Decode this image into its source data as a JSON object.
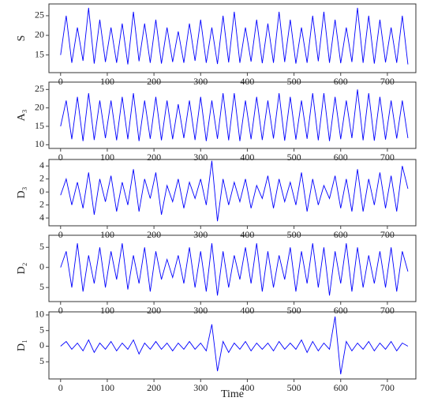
{
  "chart_data": [
    {
      "type": "line",
      "ylabel": "S",
      "color": "#0000ff",
      "x": [
        0,
        12,
        24,
        36,
        48,
        60,
        72,
        84,
        96,
        108,
        120,
        132,
        144,
        156,
        168,
        180,
        192,
        204,
        216,
        228,
        240,
        252,
        264,
        276,
        288,
        300,
        312,
        324,
        336,
        348,
        360,
        372,
        384,
        396,
        408,
        420,
        432,
        444,
        456,
        468,
        480,
        492,
        504,
        516,
        528,
        540,
        552,
        564,
        576,
        588,
        600,
        612,
        624,
        636,
        648,
        660,
        672,
        684,
        696,
        708,
        720,
        732,
        744
      ],
      "values": [
        15,
        25,
        13,
        22,
        13.5,
        27,
        12.8,
        24,
        13.2,
        22,
        13,
        23,
        12.6,
        26,
        13.4,
        23,
        13,
        24,
        12.8,
        22,
        13.2,
        21,
        13,
        23,
        13.5,
        24,
        13,
        22,
        12.7,
        25,
        13.1,
        26,
        13,
        22,
        13.3,
        24,
        12.9,
        23,
        13,
        26,
        13.2,
        24,
        12.8,
        22,
        13,
        25,
        13.4,
        26,
        13,
        24,
        12.9,
        22,
        13.2,
        27,
        13,
        25,
        12.8,
        24,
        13.1,
        22,
        13,
        25,
        12.6
      ],
      "xlim": [
        -25,
        761
      ],
      "xticks": [
        0,
        100,
        200,
        300,
        400,
        500,
        600,
        700
      ],
      "ylim": [
        10.5,
        28
      ],
      "yticks": [
        15,
        20,
        25
      ]
    },
    {
      "type": "line",
      "ylabel": "A₃",
      "color": "#0000ff",
      "x": [
        0,
        12,
        24,
        36,
        48,
        60,
        72,
        84,
        96,
        108,
        120,
        132,
        144,
        156,
        168,
        180,
        192,
        204,
        216,
        228,
        240,
        252,
        264,
        276,
        288,
        300,
        312,
        324,
        336,
        348,
        360,
        372,
        384,
        396,
        408,
        420,
        432,
        444,
        456,
        468,
        480,
        492,
        504,
        516,
        528,
        540,
        552,
        564,
        576,
        588,
        600,
        612,
        624,
        636,
        648,
        660,
        672,
        684,
        696,
        708,
        720,
        732,
        744
      ],
      "values": [
        15,
        22,
        11.5,
        23,
        11,
        24,
        11.3,
        22,
        11.8,
        22,
        11.2,
        23,
        11.5,
        24,
        11,
        22,
        11.6,
        23,
        11.2,
        22,
        11.5,
        21,
        11.8,
        22,
        11.3,
        23,
        11,
        22,
        11.6,
        24,
        11.2,
        24,
        11,
        22,
        11.5,
        23,
        11.3,
        22,
        11.7,
        24,
        11.1,
        23,
        11.4,
        22,
        11.6,
        24,
        11.2,
        24,
        11,
        23,
        11.5,
        22,
        11.8,
        25,
        11.2,
        24,
        11.1,
        23,
        11.4,
        22,
        11.7,
        22,
        11.8
      ],
      "xlim": [
        -25,
        761
      ],
      "xticks": [
        0,
        100,
        200,
        300,
        400,
        500,
        600,
        700
      ],
      "ylim": [
        9,
        27
      ],
      "yticks": [
        10,
        15,
        20,
        25
      ]
    },
    {
      "type": "line",
      "ylabel": "D₃",
      "color": "#0000ff",
      "x": [
        0,
        12,
        24,
        36,
        48,
        60,
        72,
        84,
        96,
        108,
        120,
        132,
        144,
        156,
        168,
        180,
        192,
        204,
        216,
        228,
        240,
        252,
        264,
        276,
        288,
        300,
        312,
        324,
        336,
        348,
        360,
        372,
        384,
        396,
        408,
        420,
        432,
        444,
        456,
        468,
        480,
        492,
        504,
        516,
        528,
        540,
        552,
        564,
        576,
        588,
        600,
        612,
        624,
        636,
        648,
        660,
        672,
        684,
        696,
        708,
        720,
        732,
        744
      ],
      "values": [
        -0.5,
        2,
        -2,
        1.5,
        -2.5,
        3,
        -3.5,
        2,
        -1.5,
        2.5,
        -3,
        1.5,
        -2,
        3.5,
        -3,
        2,
        -1,
        3,
        -3.5,
        1,
        -1.5,
        2,
        -2.5,
        1.5,
        -1,
        2,
        -2,
        4.8,
        -4.5,
        2,
        -2,
        1.5,
        -1.5,
        2,
        -2.5,
        1,
        -1,
        2.5,
        -2.5,
        2,
        -1.5,
        1.5,
        -2,
        3,
        -3,
        2,
        -2,
        1,
        -1,
        2.5,
        -2.5,
        2,
        -3,
        3.5,
        -3,
        2,
        -2,
        3,
        -2.5,
        2.5,
        -3,
        4,
        0.5
      ],
      "xlim": [
        -25,
        761
      ],
      "xticks": [
        0,
        100,
        200,
        300,
        400,
        500,
        600,
        700
      ],
      "ylim": [
        -5.2,
        5
      ],
      "yticks": [
        4,
        2,
        0,
        {
          "value": -2,
          "label": "2"
        },
        {
          "value": -4,
          "label": "4"
        }
      ]
    },
    {
      "type": "line",
      "ylabel": "D₂",
      "color": "#0000ff",
      "x": [
        0,
        12,
        24,
        36,
        48,
        60,
        72,
        84,
        96,
        108,
        120,
        132,
        144,
        156,
        168,
        180,
        192,
        204,
        216,
        228,
        240,
        252,
        264,
        276,
        288,
        300,
        312,
        324,
        336,
        348,
        360,
        372,
        384,
        396,
        408,
        420,
        432,
        444,
        456,
        468,
        480,
        492,
        504,
        516,
        528,
        540,
        552,
        564,
        576,
        588,
        600,
        612,
        624,
        636,
        648,
        660,
        672,
        684,
        696,
        708,
        720,
        732,
        744
      ],
      "values": [
        0,
        4,
        -5,
        6,
        -6,
        3,
        -4,
        5,
        -5,
        4,
        -3,
        6,
        -5.5,
        3,
        -4,
        5,
        -6,
        4,
        -3,
        2,
        -2.5,
        3,
        -4,
        5,
        -5,
        4,
        -6,
        6,
        -7,
        4,
        -5,
        3,
        -3,
        5,
        -4,
        6,
        -6,
        4,
        -5,
        3,
        -3,
        5,
        -6,
        4,
        -4,
        6,
        -5,
        5,
        -7,
        4,
        -4,
        6,
        -6,
        5,
        -5,
        3,
        -4,
        4,
        -5,
        5,
        -6,
        4,
        -1
      ],
      "xlim": [
        -25,
        761
      ],
      "xticks": [
        0,
        100,
        200,
        300,
        400,
        500,
        600,
        700
      ],
      "ylim": [
        -8.5,
        8
      ],
      "yticks": [
        5,
        0,
        {
          "value": -5,
          "label": "5"
        }
      ]
    },
    {
      "type": "line",
      "ylabel": "D₁",
      "xlabel": "Time",
      "color": "#0000ff",
      "x": [
        0,
        12,
        24,
        36,
        48,
        60,
        72,
        84,
        96,
        108,
        120,
        132,
        144,
        156,
        168,
        180,
        192,
        204,
        216,
        228,
        240,
        252,
        264,
        276,
        288,
        300,
        312,
        324,
        336,
        348,
        360,
        372,
        384,
        396,
        408,
        420,
        432,
        444,
        456,
        468,
        480,
        492,
        504,
        516,
        528,
        540,
        552,
        564,
        576,
        588,
        600,
        612,
        624,
        636,
        648,
        660,
        672,
        684,
        696,
        708,
        720,
        732,
        744
      ],
      "values": [
        0,
        1.5,
        -1,
        1,
        -1.5,
        2,
        -2,
        1,
        -1,
        1.5,
        -1.5,
        1,
        -1,
        2,
        -2.5,
        1,
        -1,
        1.5,
        -1,
        1,
        -1.5,
        1,
        -1,
        1.5,
        -1,
        1,
        -1.5,
        7,
        -8,
        1.5,
        -2,
        1,
        -1,
        1.5,
        -1.5,
        1,
        -1,
        1,
        -1.5,
        1.5,
        -1,
        1,
        -1,
        2,
        -2,
        1.5,
        -1.5,
        1,
        -1,
        9.5,
        -9,
        1.5,
        -1.5,
        1,
        -1,
        1.5,
        -1.5,
        1,
        -1,
        1.5,
        -1.5,
        1,
        0
      ],
      "xlim": [
        -25,
        761
      ],
      "xticks": [
        0,
        100,
        200,
        300,
        400,
        500,
        600,
        700
      ],
      "ylim": [
        -10.5,
        11
      ],
      "yticks": [
        10,
        5,
        0,
        {
          "value": -5,
          "label": "5"
        }
      ]
    }
  ]
}
